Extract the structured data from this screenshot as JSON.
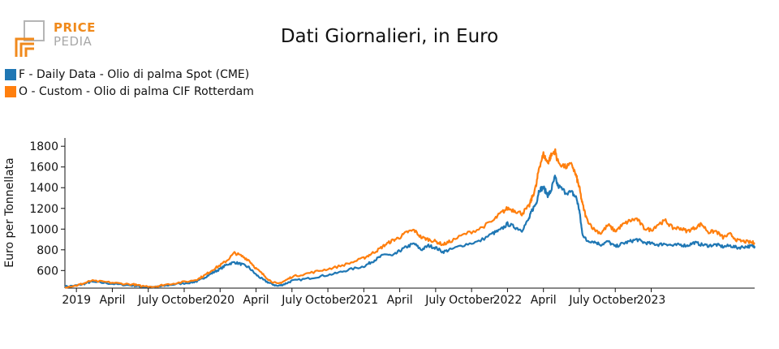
{
  "logo": {
    "word1": "PRICE",
    "word2": "PEDIA"
  },
  "chart_data": {
    "type": "line",
    "title": "Dati Giornalieri, in Euro",
    "ylabel": "Euro per Tonnellata",
    "xlabel": "",
    "ylim": [
      430,
      1880
    ],
    "yticks": [
      600,
      800,
      1000,
      1200,
      1400,
      1600,
      1800
    ],
    "xdomain": [
      2018.92,
      2023.72
    ],
    "xticks": [
      {
        "x": 2019.0,
        "label": "2019"
      },
      {
        "x": 2019.25,
        "label": "April"
      },
      {
        "x": 2019.5,
        "label": "July"
      },
      {
        "x": 2019.75,
        "label": "October"
      },
      {
        "x": 2020.0,
        "label": "2020"
      },
      {
        "x": 2020.25,
        "label": "April"
      },
      {
        "x": 2020.5,
        "label": "July"
      },
      {
        "x": 2020.75,
        "label": "October"
      },
      {
        "x": 2021.0,
        "label": "2021"
      },
      {
        "x": 2021.25,
        "label": "April"
      },
      {
        "x": 2021.5,
        "label": "July"
      },
      {
        "x": 2021.75,
        "label": "October"
      },
      {
        "x": 2022.0,
        "label": "2022"
      },
      {
        "x": 2022.25,
        "label": "April"
      },
      {
        "x": 2022.5,
        "label": "July"
      },
      {
        "x": 2022.75,
        "label": "October"
      },
      {
        "x": 2023.0,
        "label": "2023"
      }
    ],
    "series": [
      {
        "name": "F - Daily Data - Olio di palma Spot (CME)",
        "color": "#1f77b4",
        "points": [
          [
            2018.92,
            445
          ],
          [
            2019.0,
            455
          ],
          [
            2019.05,
            470
          ],
          [
            2019.1,
            490
          ],
          [
            2019.2,
            480
          ],
          [
            2019.3,
            465
          ],
          [
            2019.4,
            455
          ],
          [
            2019.45,
            445
          ],
          [
            2019.55,
            440
          ],
          [
            2019.6,
            450
          ],
          [
            2019.7,
            470
          ],
          [
            2019.8,
            485
          ],
          [
            2019.85,
            500
          ],
          [
            2019.9,
            540
          ],
          [
            2019.95,
            580
          ],
          [
            2020.0,
            615
          ],
          [
            2020.05,
            660
          ],
          [
            2020.1,
            680
          ],
          [
            2020.15,
            660
          ],
          [
            2020.2,
            630
          ],
          [
            2020.25,
            560
          ],
          [
            2020.3,
            510
          ],
          [
            2020.35,
            475
          ],
          [
            2020.4,
            450
          ],
          [
            2020.45,
            470
          ],
          [
            2020.5,
            500
          ],
          [
            2020.6,
            520
          ],
          [
            2020.7,
            545
          ],
          [
            2020.8,
            570
          ],
          [
            2020.9,
            610
          ],
          [
            2021.0,
            640
          ],
          [
            2021.05,
            680
          ],
          [
            2021.1,
            720
          ],
          [
            2021.15,
            760
          ],
          [
            2021.2,
            740
          ],
          [
            2021.25,
            790
          ],
          [
            2021.3,
            830
          ],
          [
            2021.35,
            860
          ],
          [
            2021.4,
            800
          ],
          [
            2021.45,
            840
          ],
          [
            2021.5,
            820
          ],
          [
            2021.55,
            780
          ],
          [
            2021.6,
            800
          ],
          [
            2021.7,
            850
          ],
          [
            2021.8,
            880
          ],
          [
            2021.9,
            960
          ],
          [
            2021.95,
            990
          ],
          [
            2022.0,
            1050
          ],
          [
            2022.05,
            1020
          ],
          [
            2022.1,
            990
          ],
          [
            2022.15,
            1100
          ],
          [
            2022.17,
            1180
          ],
          [
            2022.2,
            1250
          ],
          [
            2022.22,
            1380
          ],
          [
            2022.25,
            1400
          ],
          [
            2022.28,
            1330
          ],
          [
            2022.3,
            1360
          ],
          [
            2022.33,
            1500
          ],
          [
            2022.35,
            1420
          ],
          [
            2022.4,
            1360
          ],
          [
            2022.45,
            1350
          ],
          [
            2022.48,
            1300
          ],
          [
            2022.5,
            1180
          ],
          [
            2022.52,
            960
          ],
          [
            2022.55,
            890
          ],
          [
            2022.6,
            880
          ],
          [
            2022.65,
            850
          ],
          [
            2022.7,
            880
          ],
          [
            2022.75,
            830
          ],
          [
            2022.8,
            860
          ],
          [
            2022.85,
            880
          ],
          [
            2022.9,
            900
          ],
          [
            2022.95,
            870
          ],
          [
            2023.0,
            860
          ],
          [
            2023.05,
            850
          ],
          [
            2023.1,
            860
          ],
          [
            2023.15,
            840
          ],
          [
            2023.2,
            850
          ],
          [
            2023.25,
            840
          ],
          [
            2023.3,
            870
          ],
          [
            2023.35,
            850
          ],
          [
            2023.4,
            840
          ],
          [
            2023.45,
            850
          ],
          [
            2023.5,
            830
          ],
          [
            2023.55,
            840
          ],
          [
            2023.6,
            820
          ],
          [
            2023.65,
            830
          ],
          [
            2023.7,
            835
          ],
          [
            2023.72,
            835
          ]
        ]
      },
      {
        "name": "O - Custom - Olio di palma CIF Rotterdam",
        "color": "#ff7f0e",
        "points": [
          [
            2018.92,
            440
          ],
          [
            2019.0,
            455
          ],
          [
            2019.05,
            475
          ],
          [
            2019.1,
            500
          ],
          [
            2019.2,
            490
          ],
          [
            2019.3,
            475
          ],
          [
            2019.4,
            465
          ],
          [
            2019.45,
            450
          ],
          [
            2019.55,
            445
          ],
          [
            2019.6,
            460
          ],
          [
            2019.7,
            480
          ],
          [
            2019.8,
            500
          ],
          [
            2019.85,
            520
          ],
          [
            2019.9,
            560
          ],
          [
            2019.95,
            610
          ],
          [
            2020.0,
            650
          ],
          [
            2020.05,
            700
          ],
          [
            2020.1,
            770
          ],
          [
            2020.15,
            740
          ],
          [
            2020.2,
            700
          ],
          [
            2020.25,
            620
          ],
          [
            2020.3,
            560
          ],
          [
            2020.35,
            500
          ],
          [
            2020.4,
            470
          ],
          [
            2020.45,
            500
          ],
          [
            2020.5,
            540
          ],
          [
            2020.6,
            570
          ],
          [
            2020.7,
            600
          ],
          [
            2020.8,
            630
          ],
          [
            2020.9,
            670
          ],
          [
            2021.0,
            720
          ],
          [
            2021.05,
            760
          ],
          [
            2021.1,
            800
          ],
          [
            2021.15,
            850
          ],
          [
            2021.2,
            890
          ],
          [
            2021.25,
            920
          ],
          [
            2021.3,
            970
          ],
          [
            2021.35,
            990
          ],
          [
            2021.4,
            920
          ],
          [
            2021.45,
            900
          ],
          [
            2021.5,
            880
          ],
          [
            2021.55,
            850
          ],
          [
            2021.6,
            880
          ],
          [
            2021.7,
            950
          ],
          [
            2021.8,
            1000
          ],
          [
            2021.9,
            1080
          ],
          [
            2021.95,
            1150
          ],
          [
            2022.0,
            1200
          ],
          [
            2022.05,
            1180
          ],
          [
            2022.1,
            1150
          ],
          [
            2022.15,
            1220
          ],
          [
            2022.17,
            1300
          ],
          [
            2022.2,
            1420
          ],
          [
            2022.22,
            1600
          ],
          [
            2022.25,
            1720
          ],
          [
            2022.28,
            1640
          ],
          [
            2022.3,
            1700
          ],
          [
            2022.33,
            1760
          ],
          [
            2022.35,
            1650
          ],
          [
            2022.4,
            1600
          ],
          [
            2022.45,
            1620
          ],
          [
            2022.48,
            1500
          ],
          [
            2022.5,
            1400
          ],
          [
            2022.52,
            1250
          ],
          [
            2022.55,
            1100
          ],
          [
            2022.6,
            1000
          ],
          [
            2022.65,
            960
          ],
          [
            2022.7,
            1040
          ],
          [
            2022.75,
            980
          ],
          [
            2022.8,
            1040
          ],
          [
            2022.85,
            1080
          ],
          [
            2022.9,
            1100
          ],
          [
            2022.95,
            1010
          ],
          [
            2023.0,
            990
          ],
          [
            2023.05,
            1050
          ],
          [
            2023.1,
            1080
          ],
          [
            2023.15,
            1010
          ],
          [
            2023.2,
            1010
          ],
          [
            2023.25,
            980
          ],
          [
            2023.3,
            1010
          ],
          [
            2023.35,
            1050
          ],
          [
            2023.4,
            970
          ],
          [
            2023.45,
            980
          ],
          [
            2023.5,
            920
          ],
          [
            2023.55,
            950
          ],
          [
            2023.6,
            890
          ],
          [
            2023.65,
            880
          ],
          [
            2023.7,
            870
          ],
          [
            2023.72,
            870
          ]
        ]
      }
    ]
  }
}
